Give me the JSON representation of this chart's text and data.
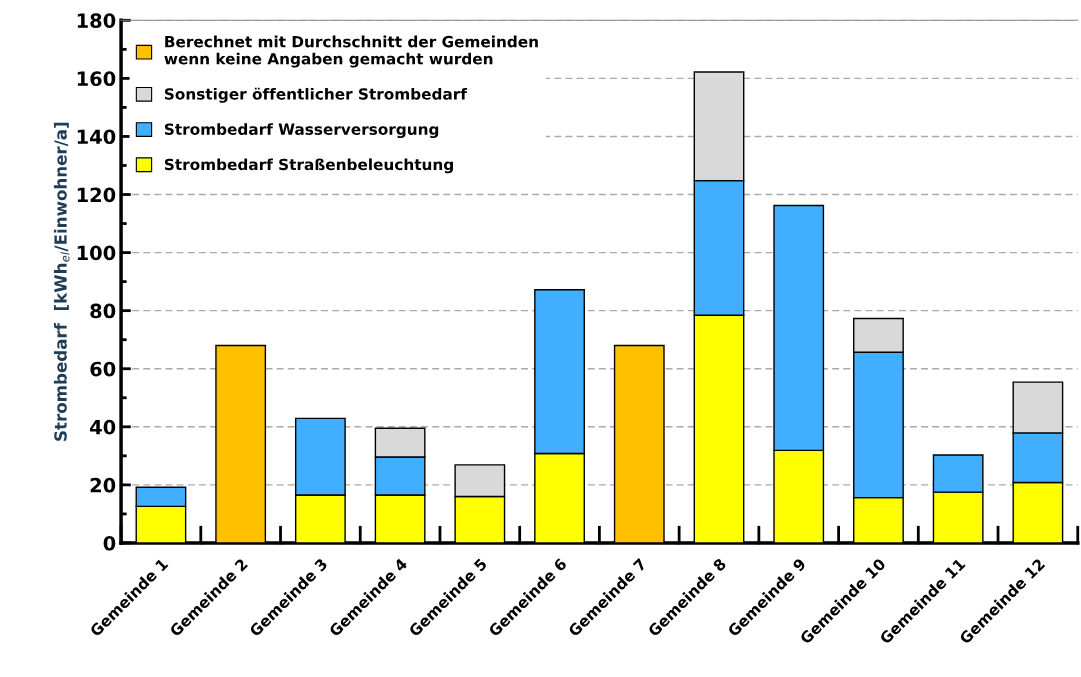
{
  "chart_data": {
    "type": "bar",
    "stacked": true,
    "ylabel": "Strombedarf  [kWh$_{el}$/Einwohner/a]",
    "categories": [
      "Gemeinde 1",
      "Gemeinde 2",
      "Gemeinde 3",
      "Gemeinde 4",
      "Gemeinde 5",
      "Gemeinde 6",
      "Gemeinde 7",
      "Gemeinde 8",
      "Gemeinde 9",
      "Gemeinde 10",
      "Gemeinde 11",
      "Gemeinde 12"
    ],
    "series": [
      {
        "name": "Strombedarf Straßenbeleuchtung",
        "color": "#ffff00",
        "values": [
          12.6,
          null,
          16.5,
          16.5,
          16.0,
          30.8,
          null,
          78.4,
          31.9,
          15.6,
          17.5,
          20.8
        ]
      },
      {
        "name": "Strombedarf Wasserversorgung",
        "color": "#41aeff",
        "values": [
          6.6,
          null,
          26.4,
          13.1,
          null,
          56.4,
          null,
          46.4,
          84.3,
          50.1,
          12.8,
          17.1
        ]
      },
      {
        "name": "Sonstiger öffentlicher Strombedarf",
        "color": "#d9d9d9",
        "values": [
          null,
          null,
          null,
          9.9,
          10.9,
          null,
          null,
          37.4,
          null,
          11.6,
          null,
          17.5
        ]
      },
      {
        "name": "Berechnet mit Durchschnitt der Gemeinden\nwenn keine Angaben gemacht wurden",
        "color": "#ffc000",
        "values": [
          null,
          68.0,
          null,
          null,
          null,
          null,
          68.0,
          null,
          null,
          null,
          null,
          null
        ]
      }
    ],
    "ylim": [
      0,
      180
    ],
    "yticks": [
      0,
      20,
      40,
      60,
      80,
      100,
      120,
      140,
      160,
      180
    ],
    "grid": "y",
    "legend": "top left"
  }
}
